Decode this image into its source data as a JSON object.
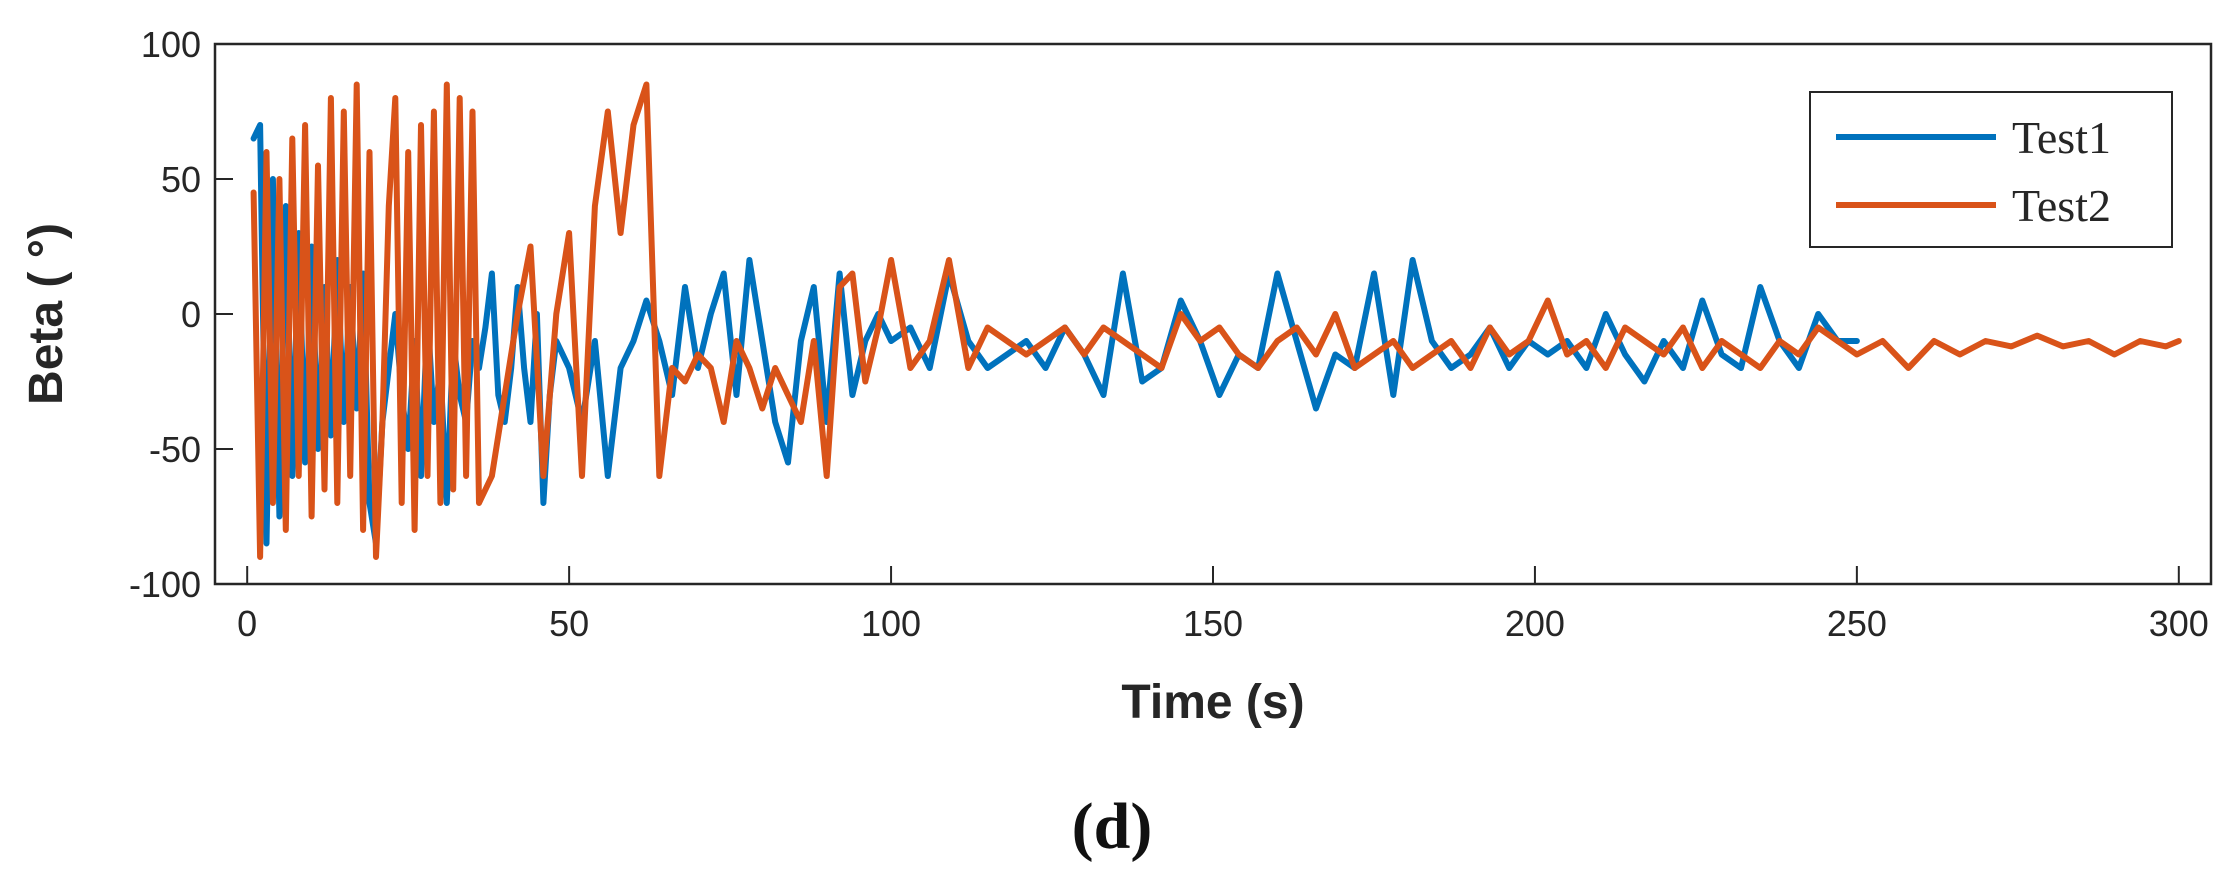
{
  "figure": {
    "panel_label": "(d)"
  },
  "chart_data": {
    "type": "line",
    "title": "",
    "xlabel": "Time (s)",
    "ylabel": "Beta ( °)",
    "xlim": [
      -5,
      305
    ],
    "ylim": [
      -100,
      100
    ],
    "xticks": [
      0,
      50,
      100,
      150,
      200,
      250,
      300
    ],
    "yticks": [
      -100,
      -50,
      0,
      50,
      100
    ],
    "grid": false,
    "legend": {
      "position": "top-right"
    },
    "series": [
      {
        "name": "Test1",
        "color": "#0072BD",
        "x": [
          1,
          2,
          3,
          4,
          5,
          6,
          7,
          8,
          9,
          10,
          11,
          12,
          13,
          14,
          15,
          16,
          17,
          18,
          19,
          20,
          21,
          22,
          23,
          24,
          25,
          26,
          27,
          28,
          29,
          30,
          31,
          32,
          33,
          34,
          35,
          36,
          37,
          38,
          39,
          40,
          41,
          42,
          43,
          44,
          45,
          46,
          47,
          48,
          50,
          52,
          54,
          56,
          58,
          60,
          62,
          64,
          66,
          68,
          70,
          72,
          74,
          76,
          78,
          80,
          82,
          84,
          86,
          88,
          90,
          92,
          94,
          96,
          98,
          100,
          103,
          106,
          109,
          112,
          115,
          118,
          121,
          124,
          127,
          130,
          133,
          136,
          139,
          142,
          145,
          148,
          151,
          154,
          157,
          160,
          163,
          166,
          169,
          172,
          175,
          178,
          181,
          184,
          187,
          190,
          193,
          196,
          199,
          202,
          205,
          208,
          211,
          214,
          217,
          220,
          223,
          226,
          229,
          232,
          235,
          238,
          241,
          244,
          247,
          250
        ],
        "y": [
          65,
          70,
          -85,
          50,
          -75,
          40,
          -60,
          30,
          -55,
          25,
          -50,
          10,
          -45,
          20,
          -40,
          10,
          -35,
          15,
          -70,
          -85,
          -40,
          -20,
          0,
          -30,
          -50,
          -10,
          -60,
          0,
          -40,
          -20,
          -70,
          -10,
          -30,
          -40,
          -10,
          -20,
          -5,
          15,
          -30,
          -40,
          -20,
          10,
          -20,
          -40,
          0,
          -70,
          -30,
          -10,
          -20,
          -40,
          -10,
          -60,
          -20,
          -10,
          5,
          -10,
          -30,
          10,
          -20,
          0,
          15,
          -30,
          20,
          -10,
          -40,
          -55,
          -10,
          10,
          -40,
          15,
          -30,
          -10,
          0,
          -10,
          -5,
          -20,
          15,
          -10,
          -20,
          -15,
          -10,
          -20,
          -5,
          -15,
          -30,
          15,
          -25,
          -20,
          5,
          -10,
          -30,
          -15,
          -20,
          15,
          -10,
          -35,
          -15,
          -20,
          15,
          -30,
          20,
          -10,
          -20,
          -15,
          -5,
          -20,
          -10,
          -15,
          -10,
          -20,
          0,
          -15,
          -25,
          -10,
          -20,
          5,
          -15,
          -20,
          10,
          -10,
          -20,
          0,
          -10,
          -10
        ]
      },
      {
        "name": "Test2",
        "color": "#D95319",
        "x": [
          1,
          2,
          3,
          4,
          5,
          6,
          7,
          8,
          9,
          10,
          11,
          12,
          13,
          14,
          15,
          16,
          17,
          18,
          19,
          20,
          21,
          22,
          23,
          24,
          25,
          26,
          27,
          28,
          29,
          30,
          31,
          32,
          33,
          34,
          35,
          36,
          38,
          40,
          42,
          44,
          46,
          48,
          50,
          52,
          54,
          56,
          58,
          60,
          62,
          64,
          66,
          68,
          70,
          72,
          74,
          76,
          78,
          80,
          82,
          84,
          86,
          88,
          90,
          92,
          94,
          96,
          98,
          100,
          103,
          106,
          109,
          112,
          115,
          118,
          121,
          124,
          127,
          130,
          133,
          136,
          139,
          142,
          145,
          148,
          151,
          154,
          157,
          160,
          163,
          166,
          169,
          172,
          175,
          178,
          181,
          184,
          187,
          190,
          193,
          196,
          199,
          202,
          205,
          208,
          211,
          214,
          217,
          220,
          223,
          226,
          229,
          232,
          235,
          238,
          241,
          244,
          247,
          250,
          254,
          258,
          262,
          266,
          270,
          274,
          278,
          282,
          286,
          290,
          294,
          298,
          300
        ],
        "y": [
          45,
          -90,
          60,
          -70,
          50,
          -80,
          65,
          -60,
          70,
          -75,
          55,
          -65,
          80,
          -70,
          75,
          -60,
          85,
          -80,
          60,
          -90,
          -40,
          40,
          80,
          -70,
          60,
          -80,
          70,
          -60,
          75,
          -70,
          85,
          -65,
          80,
          -60,
          75,
          -70,
          -60,
          -30,
          0,
          25,
          -60,
          0,
          30,
          -60,
          40,
          75,
          30,
          70,
          85,
          -60,
          -20,
          -25,
          -15,
          -20,
          -40,
          -10,
          -20,
          -35,
          -20,
          -30,
          -40,
          -10,
          -60,
          10,
          15,
          -25,
          -5,
          20,
          -20,
          -10,
          20,
          -20,
          -5,
          -10,
          -15,
          -10,
          -5,
          -15,
          -5,
          -10,
          -15,
          -20,
          0,
          -10,
          -5,
          -15,
          -20,
          -10,
          -5,
          -15,
          0,
          -20,
          -15,
          -10,
          -20,
          -15,
          -10,
          -20,
          -5,
          -15,
          -10,
          5,
          -15,
          -10,
          -20,
          -5,
          -10,
          -15,
          -5,
          -20,
          -10,
          -15,
          -20,
          -10,
          -15,
          -5,
          -10,
          -15,
          -10,
          -20,
          -10,
          -15,
          -10,
          -12,
          -8,
          -12,
          -10,
          -15,
          -10,
          -12,
          -10
        ]
      }
    ]
  }
}
